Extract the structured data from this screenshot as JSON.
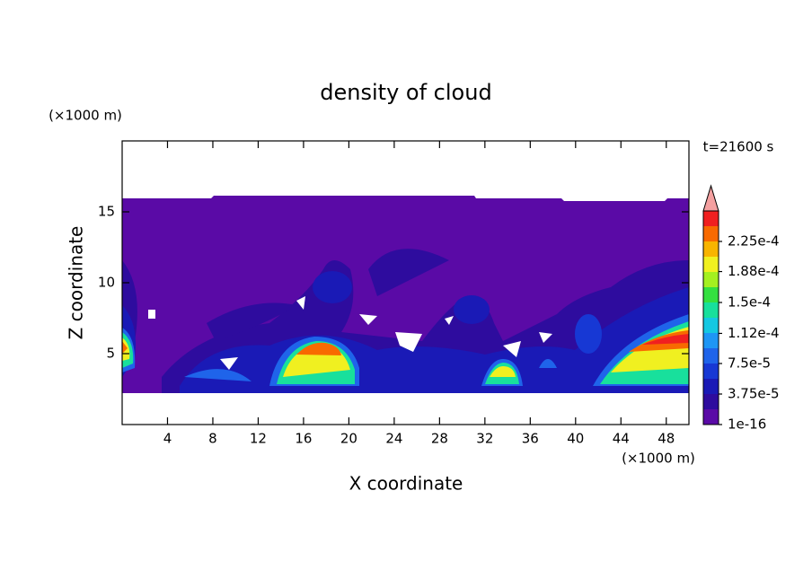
{
  "chart_data": {
    "type": "contour",
    "title": "density of cloud",
    "x_label": "X coordinate",
    "y_label": "Z coordinate",
    "x_unit": "(×1000 m)",
    "y_unit": "(×1000 m)",
    "annotation": "t=21600 s",
    "xlim": [
      0,
      50
    ],
    "xticks": [
      4,
      8,
      12,
      16,
      20,
      24,
      28,
      32,
      36,
      40,
      44,
      48
    ],
    "ylim": [
      0,
      20
    ],
    "yticks": [
      5,
      10,
      15
    ],
    "colorbar": {
      "colors": [
        "#5a0aa6",
        "#2e0c9e",
        "#1a1ab6",
        "#1738d4",
        "#1f64ea",
        "#1e96f5",
        "#14c8e2",
        "#18e09c",
        "#34e040",
        "#a4f020",
        "#f0f020",
        "#f8b400",
        "#f86a00",
        "#f02020"
      ],
      "extend_color": "#f4a0a0",
      "ticks": [
        {
          "value": 1e-16,
          "label": "1e-16"
        },
        {
          "value": 3.75e-05,
          "label": "3.75e-5"
        },
        {
          "value": 7.5e-05,
          "label": "7.5e-5"
        },
        {
          "value": 0.000112,
          "label": "1.12e-4"
        },
        {
          "value": 0.00015,
          "label": "1.5e-4"
        },
        {
          "value": 0.000188,
          "label": "1.88e-4"
        },
        {
          "value": 0.000225,
          "label": "2.25e-4"
        }
      ]
    }
  }
}
